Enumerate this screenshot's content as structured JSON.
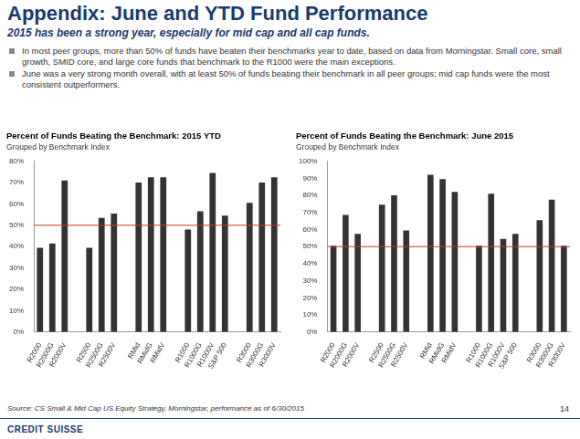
{
  "title": "Appendix: June and YTD Fund Performance",
  "subtitle": "2015 has been a strong year, especially for mid cap and all cap funds.",
  "bullets": [
    "In most peer groups, more than 50% of funds have beaten their benchmarks year to date, based on data from Morningstar. Small core, small growth, SMID core, and large core funds that benchmark to the R1000 were the main exceptions.",
    "June was a very strong month overall, with at least 50% of funds beating their benchmark in all peer groups; mid cap funds were the most consistent outperformers."
  ],
  "source": "Source: CS Small & Mid Cap US Equity Strategy, Morningstar, performance as of 6/30/2015",
  "page": "14",
  "logo": "CREDIT SUISSE",
  "chart_data": [
    {
      "type": "bar",
      "title": "Percent of Funds Beating the Benchmark: 2015 YTD",
      "subtitle": "Grouped by Benchmark Index",
      "categories": [
        "R2000",
        "R2000G",
        "R2000V",
        null,
        "R2500",
        "R2500G",
        "R2500V",
        null,
        "RMid",
        "RMidG",
        "RMidV",
        null,
        "R1000",
        "R1000G",
        "R1000V",
        "S&P 500",
        null,
        "R3000",
        "R3000G",
        "R3000V"
      ],
      "values": [
        39.5,
        41.5,
        71,
        null,
        39.5,
        53.5,
        55.5,
        null,
        70,
        72.5,
        72.5,
        null,
        48,
        56.5,
        74.5,
        54.5,
        null,
        60.5,
        70,
        72.5
      ],
      "color": "#333333",
      "ylim": [
        0,
        80
      ],
      "yticks": [
        {
          "value": 0,
          "label": "0%"
        },
        {
          "value": 10,
          "label": "10%"
        },
        {
          "value": 20,
          "label": "20%"
        },
        {
          "value": 30,
          "label": "30%"
        },
        {
          "value": 40,
          "label": "40%"
        },
        {
          "value": 50,
          "label": "50%"
        },
        {
          "value": 60,
          "label": "60%"
        },
        {
          "value": 70,
          "label": "70%"
        },
        {
          "value": 80,
          "label": "80%"
        }
      ],
      "grid": false,
      "reference_line": {
        "value": 50,
        "color": "#c0392b"
      }
    },
    {
      "type": "bar",
      "title": "Percent of Funds Beating the Benchmark: June 2015",
      "subtitle": "Grouped by Benchmark Index",
      "categories": [
        "R2000",
        "R2000G",
        "R2000V",
        null,
        "R2500",
        "R2500G",
        "R2500V",
        null,
        "RMid",
        "RMidG",
        "RMidV",
        null,
        "R1000",
        "R1000G",
        "R1000V",
        "S&P 500",
        null,
        "R3000",
        "R3000G",
        "R3000V"
      ],
      "values": [
        50.5,
        68.5,
        57.5,
        null,
        74.5,
        80,
        59.5,
        null,
        92,
        89.5,
        82,
        null,
        50.5,
        81,
        54.5,
        57.5,
        null,
        65.5,
        77.5,
        50.5
      ],
      "color": "#333333",
      "ylim": [
        0,
        100
      ],
      "yticks": [
        {
          "value": 0,
          "label": "0%"
        },
        {
          "value": 10,
          "label": "10%"
        },
        {
          "value": 20,
          "label": "20%"
        },
        {
          "value": 30,
          "label": "30%"
        },
        {
          "value": 40,
          "label": "40%"
        },
        {
          "value": 50,
          "label": "50%"
        },
        {
          "value": 60,
          "label": "60%"
        },
        {
          "value": 70,
          "label": "70%"
        },
        {
          "value": 80,
          "label": "80%"
        },
        {
          "value": 90,
          "label": "90%"
        },
        {
          "value": 100,
          "label": "100%"
        }
      ],
      "grid": false,
      "reference_line": {
        "value": 50,
        "color": "#c0392b"
      }
    }
  ]
}
